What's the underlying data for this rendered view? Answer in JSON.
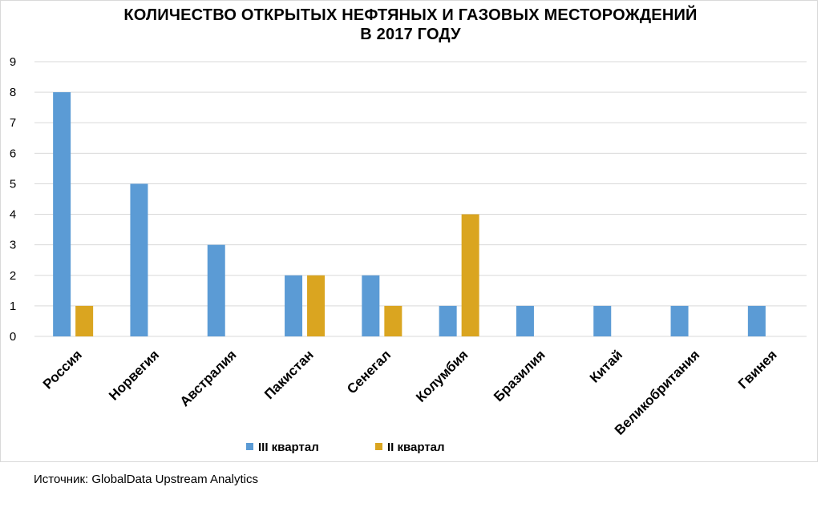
{
  "chart_data": {
    "type": "bar",
    "title_line1": "КОЛИЧЕСТВО ОТКРЫТЫХ НЕФТЯНЫХ И ГАЗОВЫХ МЕСТОРОЖДЕНИЙ",
    "title_line2": "В 2017 ГОДУ",
    "categories": [
      "Россия",
      "Норвегия",
      "Австралия",
      "Пакистан",
      "Сенегал",
      "Колумбия",
      "Бразилия",
      "Китай",
      "Великобритания",
      "Гвинея"
    ],
    "series": [
      {
        "name": "III  квартал",
        "color": "#5b9bd5",
        "values": [
          8,
          5,
          3,
          2,
          2,
          1,
          1,
          1,
          1,
          1
        ]
      },
      {
        "name": "II  квартал",
        "color": "#daa520",
        "values": [
          1,
          0,
          0,
          2,
          1,
          4,
          0,
          0,
          0,
          0
        ]
      }
    ],
    "ylim": [
      0,
      9
    ],
    "yticks": [
      "0",
      "1",
      "2",
      "3",
      "4",
      "5",
      "6",
      "7",
      "8",
      "9"
    ],
    "grid": true,
    "legend_position": "bottom"
  },
  "source": "Источник: GlobalData Upstream Analytics"
}
